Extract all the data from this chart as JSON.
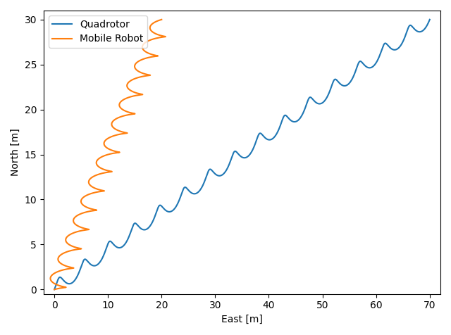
{
  "title": "",
  "xlabel": "East [m]",
  "ylabel": "North [m]",
  "quadrotor_color": "#1f77b4",
  "mobile_robot_color": "#ff7f0e",
  "legend_labels": [
    "Quadrotor",
    "Mobile Robot"
  ],
  "xlim": [
    -2,
    72
  ],
  "ylim": [
    -0.5,
    31
  ],
  "xticks": [
    0,
    10,
    20,
    30,
    40,
    50,
    60,
    70
  ],
  "yticks": [
    0,
    5,
    10,
    15,
    20,
    25,
    30
  ],
  "figsize": [
    6.4,
    4.76
  ],
  "dpi": 100,
  "linewidth": 1.5
}
